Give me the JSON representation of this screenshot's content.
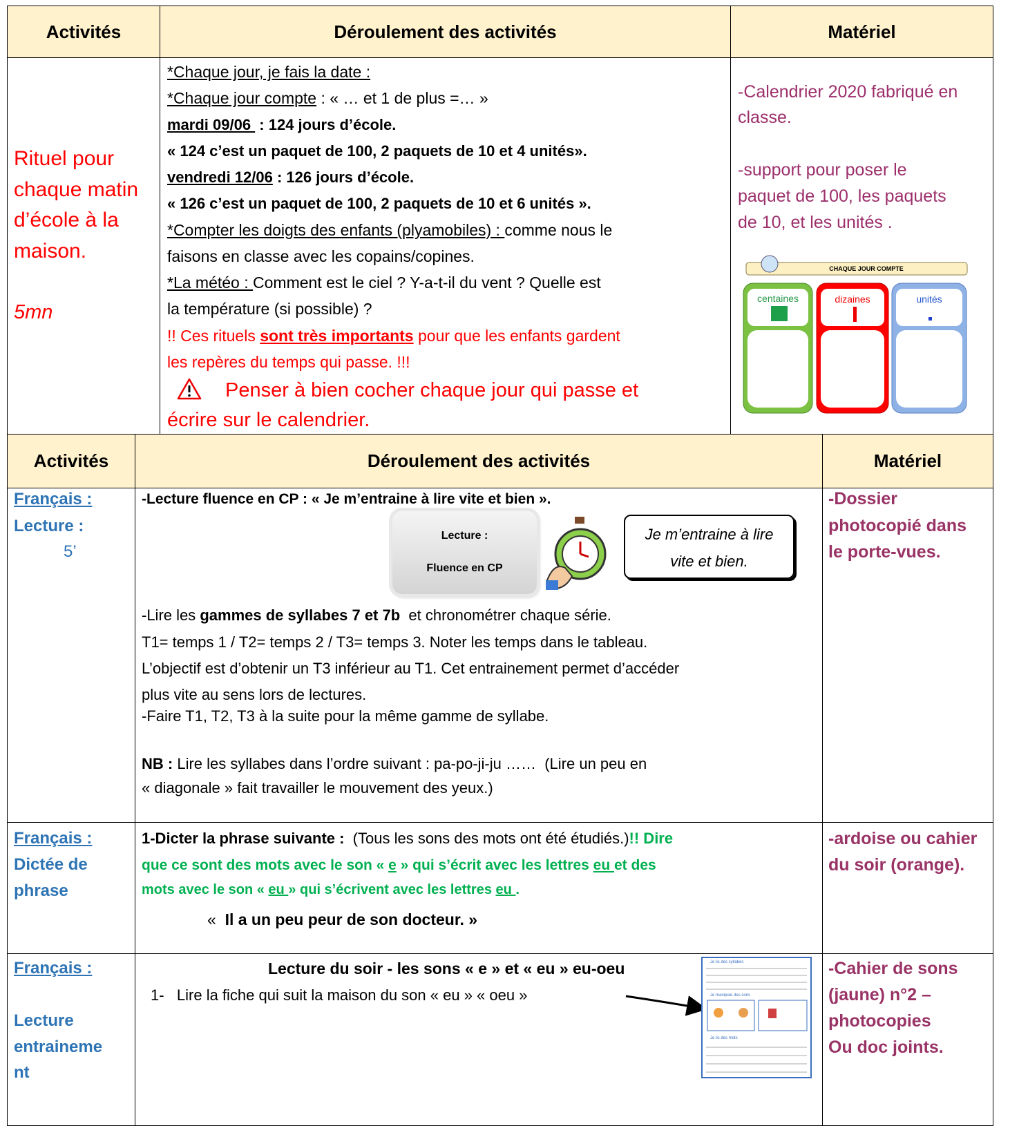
{
  "table1": {
    "headers": [
      "Activités",
      "Déroulement des activités",
      "Matériel"
    ],
    "activity": [
      "Rituel pour",
      "chaque matin",
      "d’école à la",
      "maison."
    ],
    "duration": "5mn",
    "deroulement": [
      [
        "*Chaque jour, je fais la date :"
      ],
      [
        "*Chaque jour compte",
        " : « … et 1 de plus =… »"
      ],
      [
        "mardi 09/06 ",
        " : 124 jours d’école."
      ],
      [
        "« 124 c’est un paquet de 100, 2 paquets de 10 et 4 unités»."
      ],
      [
        "vendredi 12/06",
        " : 126 jours d’école."
      ],
      [
        "« 126 c’est un paquet de 100, 2 paquets de 10 et 6 unités »."
      ],
      [
        "*Compter les doigts des enfants (plyamobiles) : ",
        "comme nous le"
      ],
      [
        "faisons en classe avec les copains/copines."
      ],
      [
        "*La météo : ",
        "Comment est le ciel ? Y-a-t-il du vent ? Quelle est"
      ],
      [
        "la température (si possible) ?"
      ],
      [
        "!! Ces rituels ",
        "sont très importants",
        " pour que les enfants gardent"
      ],
      [
        "les repères du temps qui passe. !!!"
      ],
      [
        "Penser à bien cocher chaque jour qui passe et"
      ],
      [
        "écrire sur le calendrier."
      ]
    ],
    "materiel": [
      "-Calendrier 2020 fabriqué en",
      "classe.",
      "-support pour poser le",
      "paquet de 100, les paquets",
      "de 10, et les unités ."
    ],
    "image": {
      "title": "CHAQUE JOUR COMPTE",
      "columns": [
        "centaines",
        "dizaines",
        "unités"
      ]
    }
  },
  "table2": {
    "headers": [
      "Activités",
      "Déroulement des activités",
      "Matériel"
    ],
    "rows": [
      {
        "activity": [
          "Français :",
          "Lecture :",
          "5’"
        ],
        "title": "-Lecture fluence en CP : « Je m’entraine à lire vite et bien ».",
        "button": [
          "Lecture :",
          "Fluence en CP"
        ],
        "bubble": [
          "Je m’entraine à lire",
          "vite et bien."
        ],
        "lines": [
          [
            "-Lire les ",
            "gammes de syllabes 7 et 7b",
            "  et chronométrer chaque série."
          ],
          [
            "T1= temps 1 / T2= temps 2 / T3= temps 3. Noter les temps dans le tableau."
          ],
          [
            "L’objectif est d’obtenir un T3 inférieur au T1. Cet entrainement permet d’accéder"
          ],
          [
            "plus vite au sens lors de lectures."
          ],
          [
            "-Faire T1, T2, T3 à la suite pour la même gamme de syllabe."
          ],
          [
            "NB :",
            " Lire les syllabes dans l’ordre suivant : pa-po-ji-ju ……  (Lire un peu en"
          ],
          [
            "« diagonale » fait travailler le mouvement des yeux.)"
          ]
        ],
        "materiel": [
          "-Dossier",
          "photocopié dans",
          "le porte-vues."
        ]
      },
      {
        "activity": [
          "Français :",
          "Dictée de",
          "phrase"
        ],
        "lines": [
          [
            "1-Dicter la phrase suivante :",
            "  (Tous les sons des mots ont été étudiés.)",
            "!! Dire"
          ],
          [
            "que ce sont des mots avec le son « ",
            "e",
            " » qui s’écrit avec les lettres ",
            "eu ",
            "et des"
          ],
          [
            "mots avec le son « ",
            "eu ",
            "» qui s’écrivent avec les lettres ",
            "eu ",
            "."
          ],
          [
            "«  ",
            "Il a un peu peur de son docteur. »"
          ]
        ],
        "materiel": [
          "-ardoise ou cahier",
          "du soir (orange)."
        ]
      },
      {
        "activity": [
          "Français :",
          "Lecture",
          "entraineme",
          "nt"
        ],
        "title": "Lecture du soir - les sons « e » et « eu » eu-oeu",
        "lines": [
          [
            "1-   Lire la fiche qui suit la maison du son « eu » « oeu »"
          ]
        ],
        "thumbnail": [
          "Je lis des syllabes",
          "Je manipule des sons",
          "Je lis des mots"
        ],
        "materiel": [
          "-Cahier de sons",
          "(jaune) n°2 –",
          "photocopies",
          "Ou doc joints."
        ]
      }
    ]
  }
}
